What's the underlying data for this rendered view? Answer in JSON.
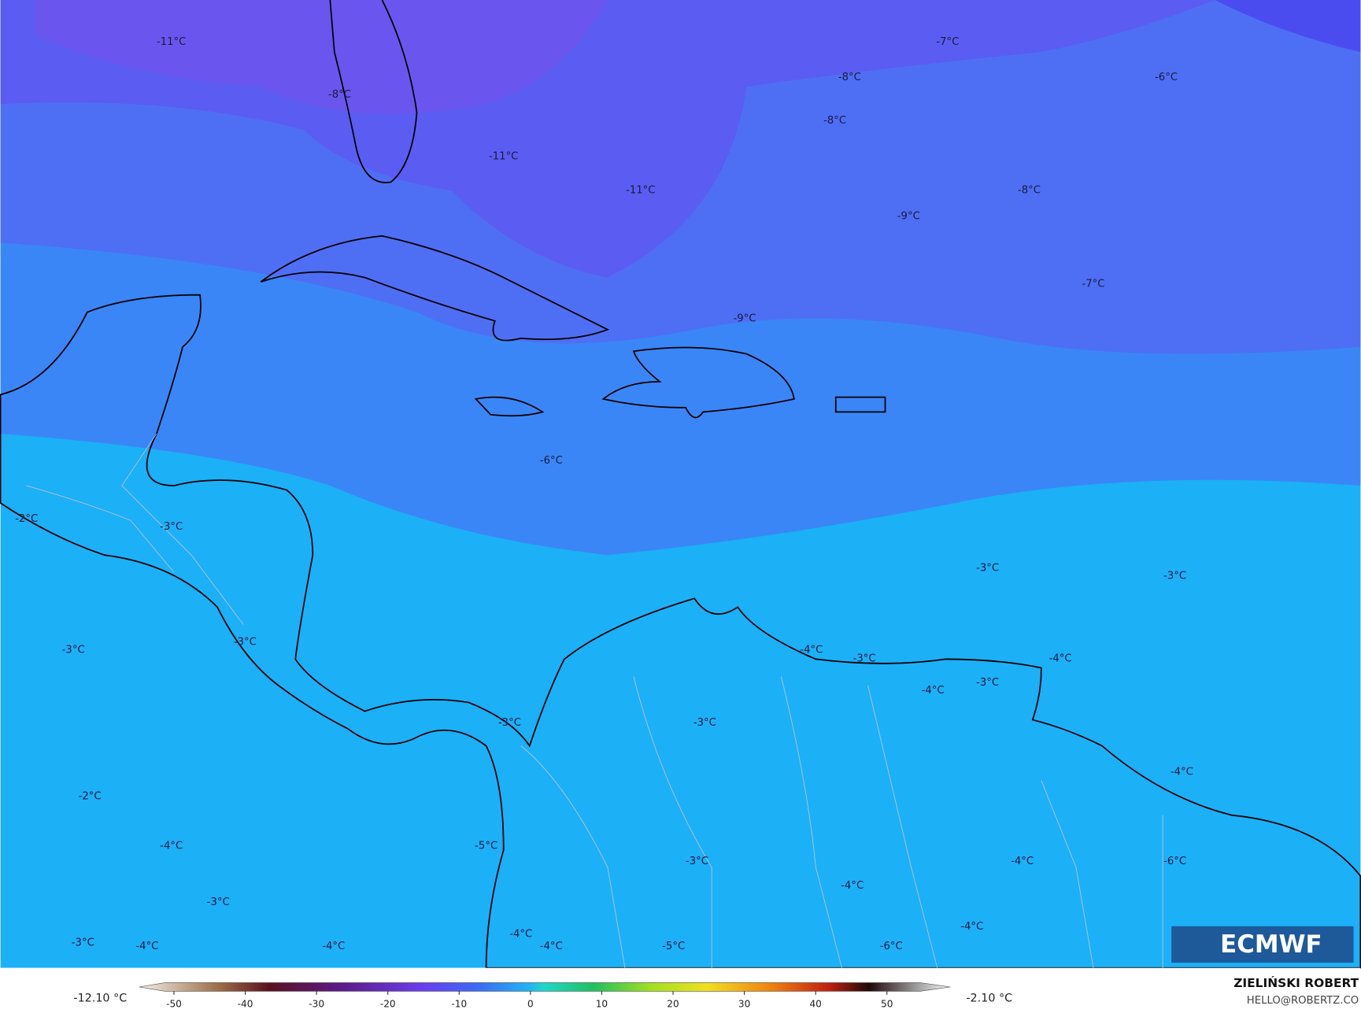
{
  "map": {
    "labels": [
      "-11°C",
      "-8°C",
      "-11°C",
      "-11°C",
      "-7°C",
      "-8°C",
      "-8°C",
      "-6°C",
      "-8°C",
      "-9°C",
      "-7°C",
      "-9°C",
      "-6°C",
      "-2°C",
      "-3°C",
      "-3°C",
      "-3°C",
      "-3°C",
      "-3°C",
      "-4°C",
      "-3°C",
      "-4°C",
      "-4°C",
      "-3°C",
      "-3°C",
      "-3°C",
      "-4°C",
      "-2°C",
      "-4°C",
      "-5°C",
      "-3°C",
      "-4°C",
      "-6°C",
      "-3°C",
      "-4°C",
      "-3°C",
      "-4°C",
      "-4°C",
      "-4°C",
      "-4°C",
      "-5°C",
      "-6°C",
      "-4°C"
    ]
  },
  "colorbar": {
    "min_label": "-12.10 °C",
    "max_label": "-2.10 °C",
    "ticks": [
      -50,
      -40,
      -30,
      -20,
      -10,
      0,
      10,
      20,
      30,
      40,
      50
    ]
  },
  "logo": "ECMWF",
  "credit": {
    "author": "ZIELIŃSKI ROBERT",
    "email": "HELLO@ROBERTZ.CO"
  }
}
